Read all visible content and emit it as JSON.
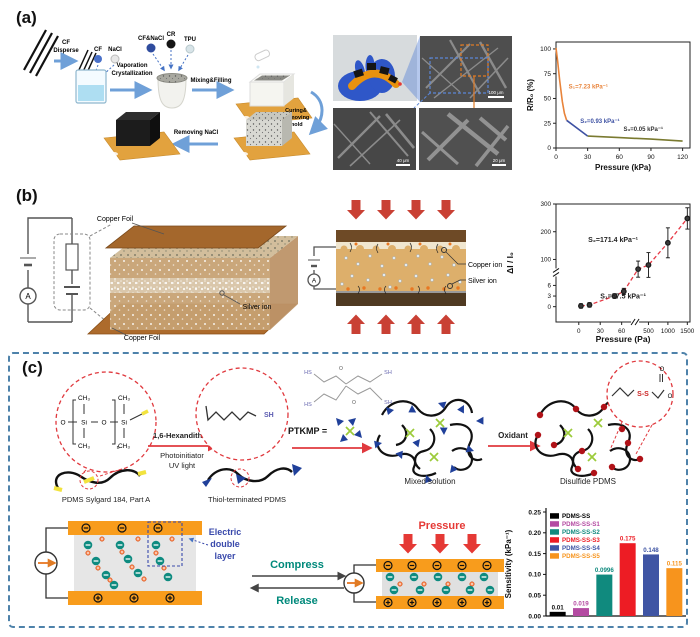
{
  "figure": {
    "panel_a": {
      "label": "(a)",
      "process": {
        "cf_l1": "CF",
        "cf_l2": "Disperse",
        "cf_ball": "CF",
        "nacl_ball": "NaCl",
        "vap_l1": "Vaporation",
        "vap_l2": "Crystallization",
        "cfnacl_ball": "CF&NaCl",
        "cr_ball": "CR",
        "tpu_ball": "TPU",
        "mixing": "Mixing&Filling",
        "curing_l1": "Curing&",
        "curing_l2": "Removing",
        "curing_l3": "mold",
        "removing_nacl": "Removing NaCl"
      },
      "images": {
        "sem1_scale": "100 μm",
        "sem2_scale": "40 μm",
        "sem3_scale": "20 μm"
      }
    },
    "panel_b": {
      "label": "(b)",
      "schematic": {
        "copper_foil_top": "Copper Foil",
        "copper_foil_bottom": "Copper Foil",
        "silver_ion": "Silver ion",
        "ammeter": "A"
      },
      "compressed": {
        "copper_ion": "Copper ion",
        "silver_ion": "Silver ion",
        "ammeter": "A"
      }
    },
    "panel_c": {
      "label": "(c)",
      "synthesis": {
        "pdms_label": "PDMS Sylgard 184, Part A",
        "step1_reagent": "1,6-Hexandithiol",
        "step1_cond1": "Photoinitiator",
        "step1_cond2": "UV light",
        "thiol_label": "Thiol-terminated PDMS",
        "ptkmp": "PTKMP =",
        "mixed_label": "Mixed solution",
        "step3_reagent": "Oxidant",
        "disulfide_label": "Disulfide PDMS",
        "chem": {
          "ch3": "CH₃",
          "si": "Si",
          "o": "O",
          "n": "n",
          "sh": "SH",
          "hs": "HS",
          "ss": "S-S"
        }
      },
      "device": {
        "edl_l1": "Electric",
        "edl_l2": "double",
        "edl_l3": "layer",
        "compress": "Compress",
        "release": "Release",
        "pressure": "Pressure"
      }
    }
  },
  "chart_data": [
    {
      "id": "chart-a",
      "type": "line",
      "xlabel": "Pressure (kPa)",
      "ylabel": "R/R₀ (%)",
      "xticks": [
        0,
        30,
        60,
        90,
        120
      ],
      "yticks": [
        0,
        25,
        50,
        75,
        100
      ],
      "xlim": [
        0,
        127
      ],
      "ylim": [
        0,
        107
      ],
      "grid": false,
      "series": [
        {
          "name": "S1 region",
          "color": "#E8833A",
          "points": [
            [
              0,
              101
            ],
            [
              1.5,
              88
            ],
            [
              3.5,
              68
            ],
            [
              6,
              47
            ],
            [
              8,
              35
            ],
            [
              10,
              28
            ]
          ]
        },
        {
          "name": "S2 region",
          "color": "#3D51A3",
          "points": [
            [
              10,
              28
            ],
            [
              30,
              12
            ]
          ]
        },
        {
          "name": "S3 region",
          "color": "#7A7A30",
          "points": [
            [
              30,
              12
            ],
            [
              60,
              10.5
            ],
            [
              90,
              9
            ],
            [
              120,
              7
            ]
          ]
        }
      ],
      "annotations": [
        {
          "text": "S₁=7.23 kPa⁻¹",
          "color": "#E8833A",
          "x": 12,
          "y": 60
        },
        {
          "text": "S₂=0.93 kPa⁻¹",
          "color": "#3D51A3",
          "x": 23,
          "y": 25
        },
        {
          "text": "S₃=0.05 kPa⁻¹",
          "color": "#333333",
          "x": 64,
          "y": 17
        }
      ]
    },
    {
      "id": "chart-b",
      "type": "scatter",
      "xlabel": "Pressure (Pa)",
      "ylabel": "ΔI / I₀",
      "xticks": [
        0,
        30,
        60,
        500,
        1000,
        1500
      ],
      "yticks": [
        0,
        3,
        6,
        100,
        200,
        300
      ],
      "axis_breaks": {
        "x_between": [
          60,
          500
        ],
        "y_between": [
          6,
          100
        ]
      },
      "points": [
        [
          3,
          0.2,
          0.25
        ],
        [
          15,
          0.5,
          0.3
        ],
        [
          50,
          3,
          0.4
        ],
        [
          95,
          4.3,
          1.3
        ],
        [
          330,
          65,
          7
        ],
        [
          500,
          80,
          12
        ],
        [
          1000,
          160,
          15
        ],
        [
          1500,
          248,
          10
        ]
      ],
      "trend_color": "#E63946",
      "marker_color": "#1a1a1a",
      "annotations": [
        {
          "text": "S₂=171.4 kPa⁻¹",
          "color": "#222222",
          "fx": 0.24,
          "fy": 0.68
        },
        {
          "text": "S₁=57.5 kPa⁻¹",
          "color": "#222222",
          "fx": 0.33,
          "fy": 0.2
        }
      ]
    },
    {
      "id": "chart-c",
      "type": "bar",
      "ylabel": "Sensitivity (kPa⁻¹)",
      "yticks": [
        0,
        0.05,
        0.1,
        0.15,
        0.2,
        0.25
      ],
      "ytick_labels": [
        "0.00",
        "0.05",
        "0.10",
        "0.15",
        "0.20",
        "0.25"
      ],
      "ylim": [
        0,
        0.25
      ],
      "categories": [
        "PDMS-SS",
        "PDMS-SS-S1",
        "PDMS-SS-S2",
        "PDMS-SS-S3",
        "PDMS-SS-S4",
        "PDMS-SS-S5"
      ],
      "values": [
        0.01,
        0.019,
        0.0996,
        0.175,
        0.148,
        0.115
      ],
      "value_labels": [
        "0.01",
        "0.019",
        "0.0996",
        "0.175",
        "0.148",
        "0.115"
      ],
      "colors": [
        "#000000",
        "#B44BA2",
        "#108A7E",
        "#ED1C24",
        "#3F55A4",
        "#F7941D"
      ],
      "legend_position": "top-left"
    }
  ]
}
